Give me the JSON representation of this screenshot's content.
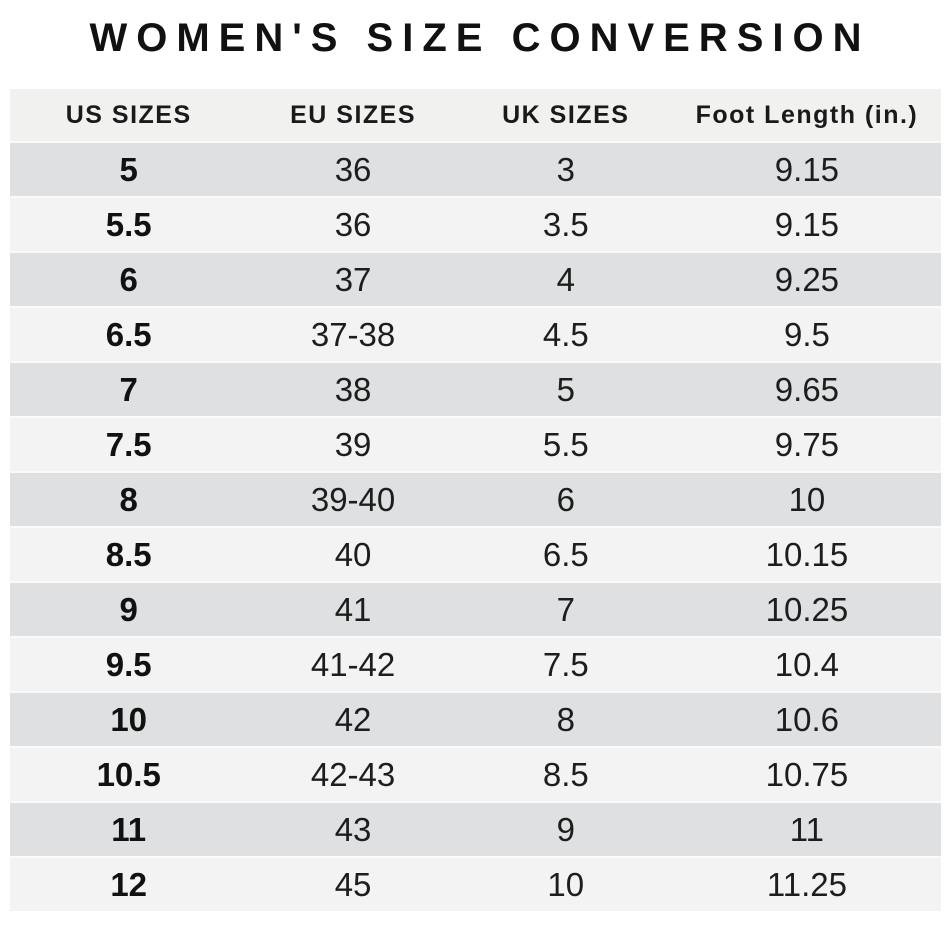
{
  "title": "WOMEN'S SIZE CONVERSION",
  "chart_data": {
    "type": "table",
    "title": "WOMEN'S SIZE CONVERSION",
    "columns": [
      "US SIZES",
      "EU SIZES",
      "UK SIZES",
      "Foot Length (in.)"
    ],
    "rows": [
      [
        "5",
        "36",
        "3",
        "9.15"
      ],
      [
        "5.5",
        "36",
        "3.5",
        "9.15"
      ],
      [
        "6",
        "37",
        "4",
        "9.25"
      ],
      [
        "6.5",
        "37-38",
        "4.5",
        "9.5"
      ],
      [
        "7",
        "38",
        "5",
        "9.65"
      ],
      [
        "7.5",
        "39",
        "5.5",
        "9.75"
      ],
      [
        "8",
        "39-40",
        "6",
        "10"
      ],
      [
        "8.5",
        "40",
        "6.5",
        "10.15"
      ],
      [
        "9",
        "41",
        "7",
        "10.25"
      ],
      [
        "9.5",
        "41-42",
        "7.5",
        "10.4"
      ],
      [
        "10",
        "42",
        "8",
        "10.6"
      ],
      [
        "10.5",
        "42-43",
        "8.5",
        "10.75"
      ],
      [
        "11",
        "43",
        "9",
        "11"
      ],
      [
        "12",
        "45",
        "10",
        "11.25"
      ]
    ],
    "layout": {
      "striped": true,
      "first_column_bold": true,
      "header_position": "top",
      "grid": false
    }
  },
  "colors": {
    "header_bg": "#f1f1f0",
    "row_dark": "#dee0e1",
    "row_light": "#f2f3f2",
    "separator": "#fafafa",
    "title_text": "#111111",
    "body_text": "#1d1d1d",
    "page_bg": "#ffffff"
  }
}
